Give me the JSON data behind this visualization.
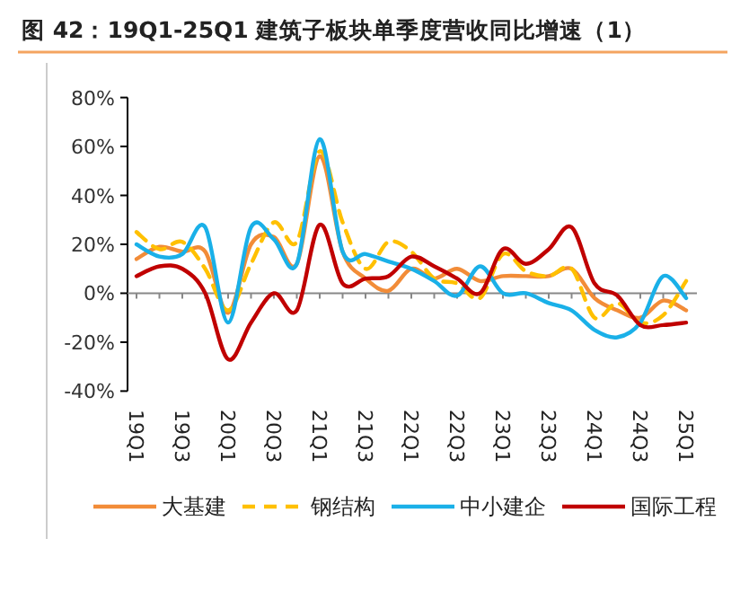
{
  "chart_data": {
    "type": "line",
    "title": "图 42：19Q1-25Q1 建筑子板块单季度营收同比增速（1）",
    "categories": [
      "19Q1",
      null,
      "19Q3",
      null,
      "20Q1",
      null,
      "20Q3",
      null,
      "21Q1",
      null,
      "21Q3",
      null,
      "22Q1",
      null,
      "22Q3",
      null,
      "23Q1",
      null,
      "23Q3",
      null,
      "24Q1",
      null,
      "24Q3",
      null,
      "25Q1"
    ],
    "ylim": [
      -40,
      80
    ],
    "yticks": [
      {
        "value": -40,
        "label": "-40%"
      },
      {
        "value": -20,
        "label": "-20%"
      },
      {
        "value": 0,
        "label": "0%"
      },
      {
        "value": 20,
        "label": "20%"
      },
      {
        "value": 40,
        "label": "40%"
      },
      {
        "value": 60,
        "label": "60%"
      },
      {
        "value": 80,
        "label": "80%"
      }
    ],
    "legend": "bottom",
    "marker": "none",
    "series": [
      {
        "name": "大基建",
        "color": "#f28c38",
        "line_style": "solid",
        "values": [
          14,
          19,
          17,
          17,
          -8,
          20,
          23,
          12,
          56,
          17,
          6,
          1,
          10,
          6,
          10,
          5,
          7,
          7,
          7,
          10,
          -2,
          -7,
          -10,
          -3,
          -7
        ]
      },
      {
        "name": "钢结构",
        "color": "#ffc000",
        "line_style": "dashed",
        "values": [
          25,
          18,
          21,
          10,
          -7,
          12,
          29,
          21,
          58,
          29,
          10,
          21,
          17,
          6,
          4,
          -2,
          16,
          9,
          7,
          10,
          -10,
          -4,
          -12,
          -9,
          5
        ]
      },
      {
        "name": "中小建企",
        "color": "#1ab0e8",
        "line_style": "solid",
        "values": [
          20,
          15,
          16,
          27,
          -12,
          27,
          22,
          12,
          63,
          17,
          16,
          13,
          10,
          5,
          -1,
          11,
          0,
          0,
          -4,
          -7,
          -15,
          -18,
          -12,
          7,
          -2
        ]
      },
      {
        "name": "国际工程",
        "color": "#c00000",
        "line_style": "solid",
        "values": [
          7,
          11,
          10,
          0,
          -27,
          -12,
          0,
          -7,
          28,
          4,
          6,
          7,
          15,
          11,
          6,
          0,
          18,
          12,
          18,
          27,
          4,
          -1,
          -13,
          -13,
          -12
        ]
      }
    ]
  }
}
